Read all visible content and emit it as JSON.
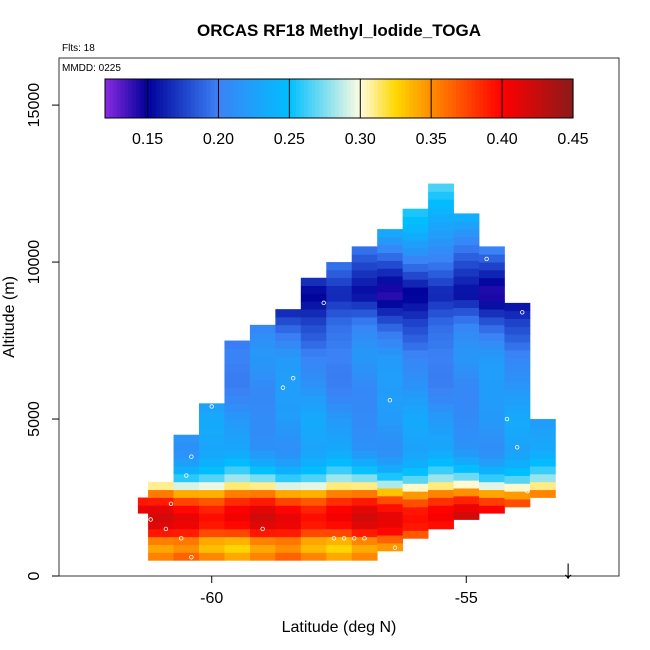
{
  "chart_data": {
    "type": "heatmap",
    "title": "ORCAS RF18 Methyl_Iodide_TOGA",
    "flights_note": "Flts: 18",
    "date_note": "MMDD: 0225",
    "xlabel": "Latitude (deg N)",
    "ylabel": "Altitude (m)",
    "xlim": [
      -63,
      -52
    ],
    "ylim": [
      0,
      16500
    ],
    "x_ticks": [
      -60,
      -55
    ],
    "x_tick_labels": [
      "-60",
      "-55"
    ],
    "y_ticks": [
      0,
      5000,
      10000,
      15000
    ],
    "y_tick_labels": [
      "0",
      "5000",
      "10000",
      "15000"
    ],
    "colorbar": {
      "min": 0.12,
      "max": 0.45,
      "ticks": [
        0.15,
        0.2,
        0.25,
        0.3,
        0.35,
        0.4,
        0.45
      ],
      "tick_labels": [
        "0.15",
        "0.20",
        "0.25",
        "0.30",
        "0.35",
        "0.40",
        "0.45"
      ],
      "stops": [
        {
          "v": 0.12,
          "color": "#8a2be2"
        },
        {
          "v": 0.15,
          "color": "#00009a"
        },
        {
          "v": 0.2,
          "color": "#3b82f6"
        },
        {
          "v": 0.25,
          "color": "#00bfff"
        },
        {
          "v": 0.3,
          "color": "#fffce0"
        },
        {
          "v": 0.325,
          "color": "#ffd700"
        },
        {
          "v": 0.35,
          "color": "#ff8c00"
        },
        {
          "v": 0.4,
          "color": "#ff0000"
        },
        {
          "v": 0.45,
          "color": "#8b1a1a"
        }
      ]
    },
    "profile_columns": [
      {
        "lat": -61.2,
        "bottom": 2000,
        "top": 2500
      },
      {
        "lat": -61.0,
        "bottom": 500,
        "top": 3000
      },
      {
        "lat": -60.5,
        "bottom": 500,
        "top": 4500
      },
      {
        "lat": -60.0,
        "bottom": 500,
        "top": 5500
      },
      {
        "lat": -59.5,
        "bottom": 500,
        "top": 7500
      },
      {
        "lat": -59.0,
        "bottom": 500,
        "top": 8000
      },
      {
        "lat": -58.5,
        "bottom": 500,
        "top": 8500
      },
      {
        "lat": -58.0,
        "bottom": 500,
        "top": 9500
      },
      {
        "lat": -57.5,
        "bottom": 500,
        "top": 10000
      },
      {
        "lat": -57.0,
        "bottom": 500,
        "top": 10500
      },
      {
        "lat": -56.5,
        "bottom": 800,
        "top": 11000
      },
      {
        "lat": -56.0,
        "bottom": 1200,
        "top": 11500
      },
      {
        "lat": -55.5,
        "bottom": 1500,
        "top": 12500
      },
      {
        "lat": -55.0,
        "bottom": 1800,
        "top": 11500
      },
      {
        "lat": -54.5,
        "bottom": 2000,
        "top": 10500
      },
      {
        "lat": -54.0,
        "bottom": 2200,
        "top": 8500
      },
      {
        "lat": -53.5,
        "bottom": 2500,
        "top": 5000
      }
    ],
    "value_by_altitude": [
      {
        "alt": 500,
        "value": 0.36
      },
      {
        "alt": 1000,
        "value": 0.33
      },
      {
        "alt": 1500,
        "value": 0.4
      },
      {
        "alt": 2000,
        "value": 0.41
      },
      {
        "alt": 2500,
        "value": 0.37
      },
      {
        "alt": 3000,
        "value": 0.28
      },
      {
        "alt": 3500,
        "value": 0.24
      },
      {
        "alt": 4000,
        "value": 0.22
      },
      {
        "alt": 5000,
        "value": 0.22
      },
      {
        "alt": 6000,
        "value": 0.21
      },
      {
        "alt": 7000,
        "value": 0.21
      },
      {
        "alt": 8000,
        "value": 0.19
      },
      {
        "alt": 9000,
        "value": 0.15
      },
      {
        "alt": 10000,
        "value": 0.19
      },
      {
        "alt": 11000,
        "value": 0.23
      },
      {
        "alt": 12500,
        "value": 0.28
      }
    ],
    "sample_points": [
      {
        "lat": -61.3,
        "alt": 300
      },
      {
        "lat": -61.0,
        "alt": 300
      },
      {
        "lat": -60.4,
        "alt": 600
      },
      {
        "lat": -60.6,
        "alt": 1200
      },
      {
        "lat": -60.9,
        "alt": 1500
      },
      {
        "lat": -61.2,
        "alt": 1800
      },
      {
        "lat": -60.8,
        "alt": 2300
      },
      {
        "lat": -59.8,
        "alt": 300
      },
      {
        "lat": -59.0,
        "alt": 1500
      },
      {
        "lat": -57.6,
        "alt": 1200
      },
      {
        "lat": -57.4,
        "alt": 1200
      },
      {
        "lat": -57.2,
        "alt": 1200
      },
      {
        "lat": -57.0,
        "alt": 1200
      },
      {
        "lat": -56.4,
        "alt": 900
      },
      {
        "lat": -58.0,
        "alt": 400
      },
      {
        "lat": -60.5,
        "alt": 3200
      },
      {
        "lat": -60.4,
        "alt": 3800
      },
      {
        "lat": -60.0,
        "alt": 5400
      },
      {
        "lat": -59.8,
        "alt": 6600
      },
      {
        "lat": -59.3,
        "alt": 7800
      },
      {
        "lat": -58.6,
        "alt": 6000
      },
      {
        "lat": -58.4,
        "alt": 6300
      },
      {
        "lat": -57.8,
        "alt": 8700
      },
      {
        "lat": -56.5,
        "alt": 5600
      },
      {
        "lat": -54.6,
        "alt": 10100
      },
      {
        "lat": -53.9,
        "alt": 8400
      },
      {
        "lat": -53.6,
        "alt": 5600
      },
      {
        "lat": -54.0,
        "alt": 4100
      },
      {
        "lat": -53.8,
        "alt": 2700
      },
      {
        "lat": -54.2,
        "alt": 5000
      }
    ],
    "arrow_marker": {
      "lat": -53.0,
      "symbol": "↓"
    }
  }
}
